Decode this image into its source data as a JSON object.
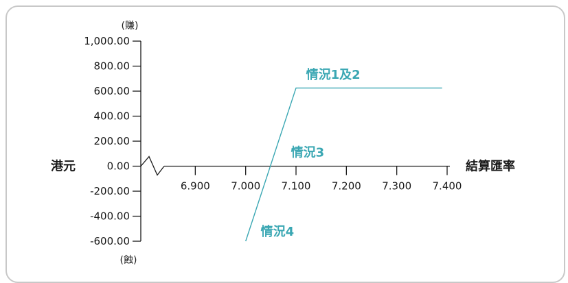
{
  "chart_data": {
    "type": "line",
    "ylabel": "港元",
    "xlabel": "結算匯率",
    "y_unit_top": "(賺)",
    "y_unit_bottom": "(蝕)",
    "xlim": [
      6.8,
      7.4
    ],
    "ylim": [
      -600,
      1000
    ],
    "x_ticks": [
      6.9,
      7.0,
      7.1,
      7.2,
      7.3,
      7.4
    ],
    "x_tick_labels": [
      "6.900",
      "7.000",
      "7.100",
      "7.200",
      "7.300",
      "7.400"
    ],
    "y_ticks": [
      1000,
      800,
      600,
      400,
      200,
      0,
      -200,
      -400,
      -600
    ],
    "y_tick_labels": [
      "1,000.00",
      "800.00",
      "600.00",
      "400.00",
      "200.00",
      "0.00",
      "-200.00",
      "-400.00",
      "-600.00"
    ],
    "axis_break": true,
    "series": [
      {
        "points": [
          [
            7.0,
            -600
          ],
          [
            7.1,
            625
          ],
          [
            7.39,
            625
          ]
        ],
        "color": "#3aa7b3"
      }
    ],
    "annotations": [
      {
        "text": "情況1及2",
        "x": 7.12,
        "y": 700
      },
      {
        "text": "情況3",
        "x": 7.09,
        "y": 78
      },
      {
        "text": "情況4",
        "x": 7.03,
        "y": -555
      }
    ]
  },
  "colors": {
    "accent": "#3aa7b3",
    "axis": "#1a1a1a",
    "frame_border": "#c8c8c8"
  }
}
